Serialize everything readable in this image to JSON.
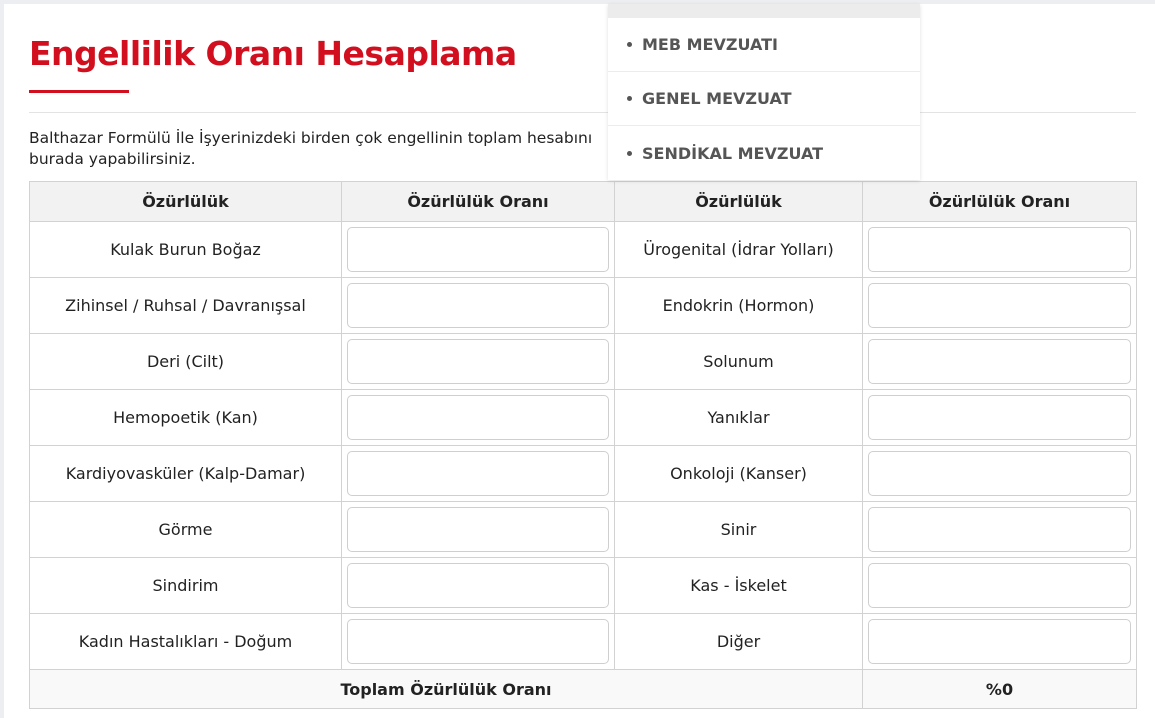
{
  "page": {
    "title": "Engellilik Oranı Hesaplama",
    "intro": "Balthazar Formülü İle İşyerinizdeki birden çok engellinin toplam hesabını burada yapabilirsiniz."
  },
  "dropdown": {
    "items": [
      {
        "label": "MEB MEVZUATI"
      },
      {
        "label": "GENEL MEVZUAT"
      },
      {
        "label": "SENDİKAL MEVZUAT"
      }
    ]
  },
  "table": {
    "headers": [
      "Özürlülük",
      "Özürlülük Oranı",
      "Özürlülük",
      "Özürlülük Oranı"
    ],
    "rows": [
      {
        "left": "Kulak Burun Boğaz",
        "right": "Ürogenital (İdrar Yolları)"
      },
      {
        "left": "Zihinsel / Ruhsal / Davranışsal",
        "right": "Endokrin (Hormon)"
      },
      {
        "left": "Deri (Cilt)",
        "right": "Solunum"
      },
      {
        "left": "Hemopoetik (Kan)",
        "right": "Yanıklar"
      },
      {
        "left": "Kardiyovasküler (Kalp-Damar)",
        "right": "Onkoloji (Kanser)"
      },
      {
        "left": "Görme",
        "right": "Sinir"
      },
      {
        "left": "Sindirim",
        "right": "Kas - İskelet"
      },
      {
        "left": "Kadın Hastalıkları - Doğum",
        "right": "Diğer"
      }
    ],
    "total_label": "Toplam Özürlülük Oranı",
    "total_value": "%0"
  },
  "colors": {
    "accent": "#d10f1e"
  }
}
